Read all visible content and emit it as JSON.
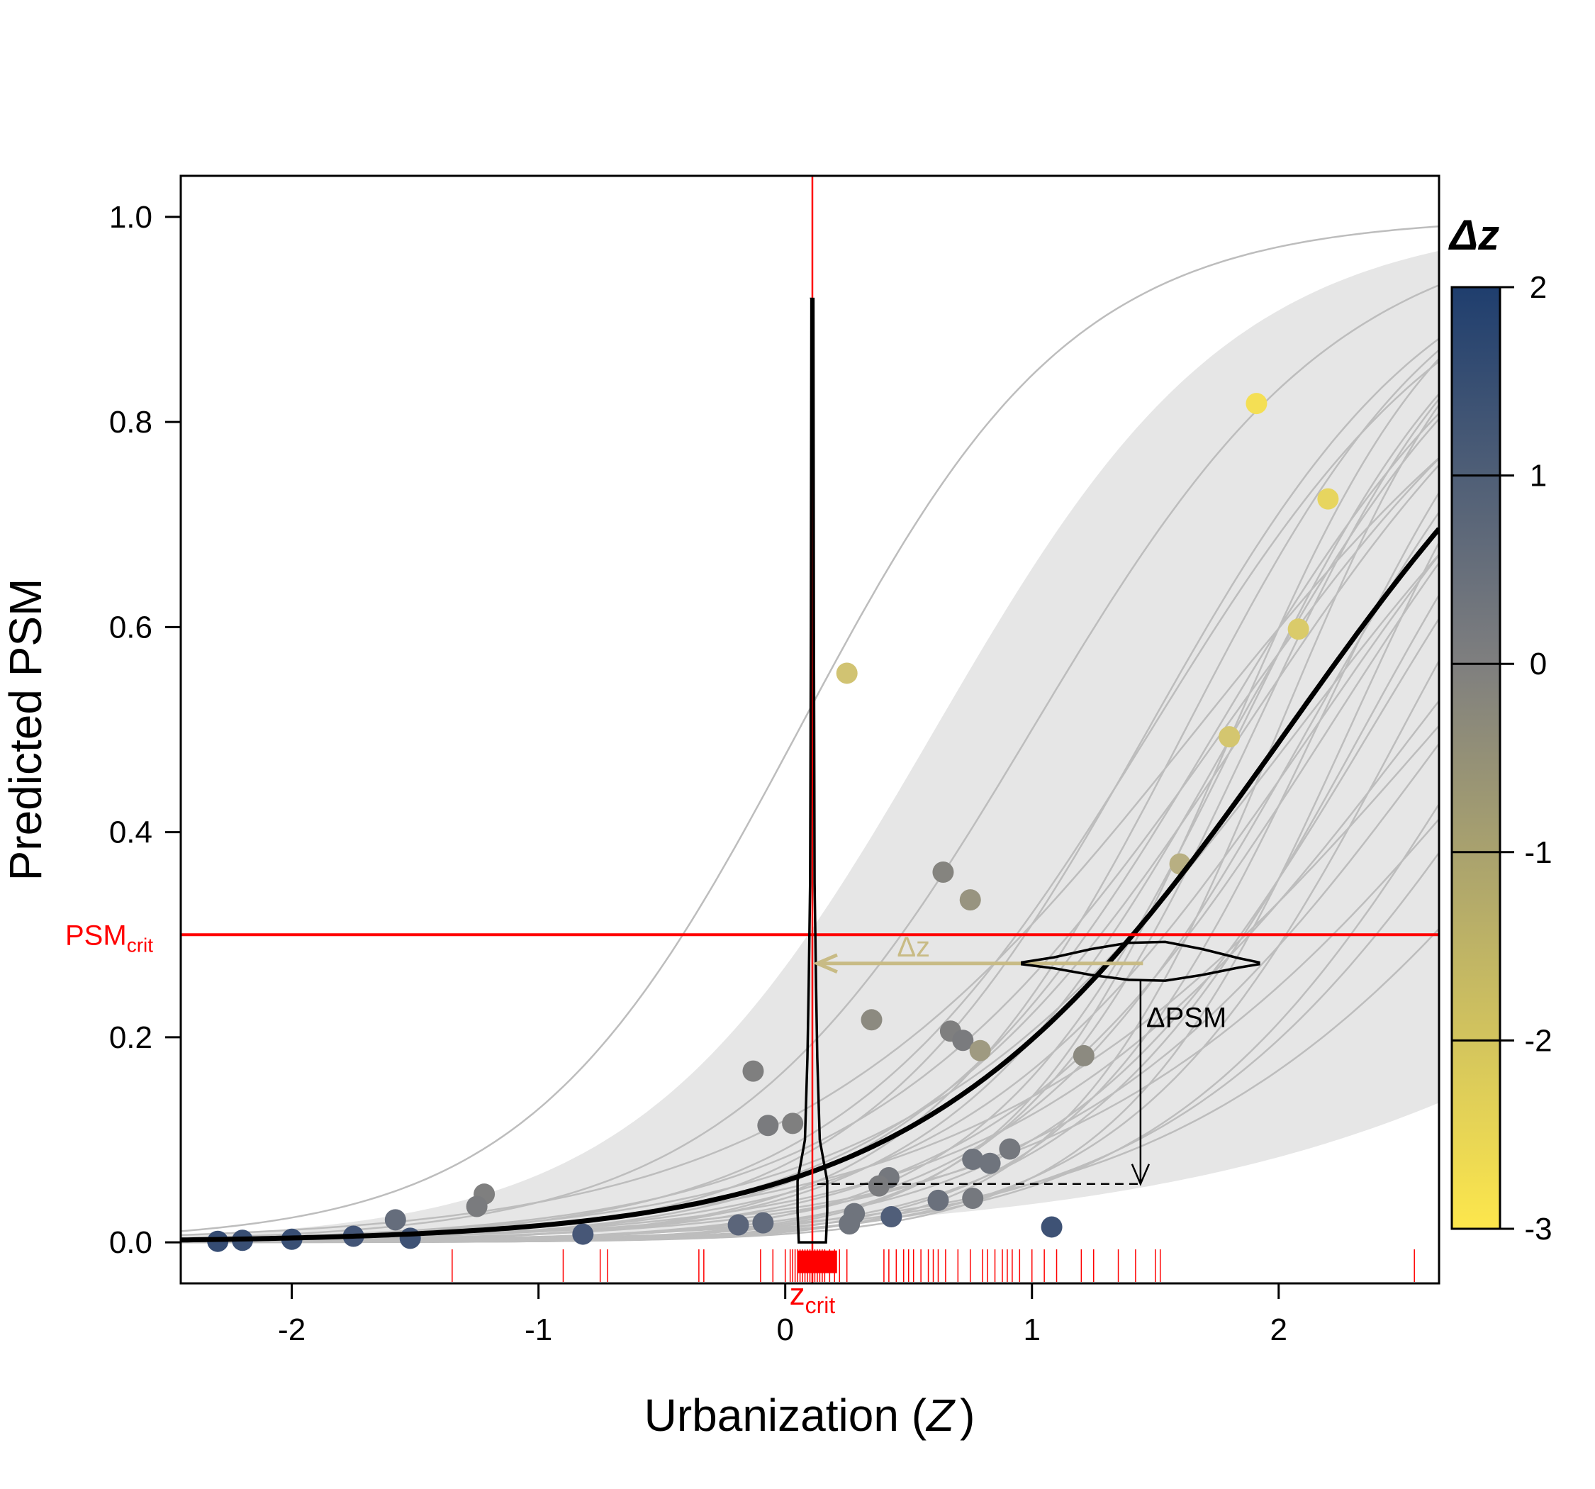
{
  "chart_data": {
    "type": "scatter",
    "xlabel": "Urbanization (",
    "xlabel_var": "Z",
    "xlabel_close": ")",
    "ylabel": "Predicted PSM",
    "xlim": [
      -2.45,
      2.65
    ],
    "ylim": [
      -0.04,
      1.04
    ],
    "x_ticks": [
      -2,
      -1,
      0,
      1,
      2
    ],
    "x_tick_labels": [
      "-2",
      "-1",
      "0",
      "1",
      "2"
    ],
    "y_ticks": [
      0.0,
      0.2,
      0.4,
      0.6,
      0.8,
      1.0
    ],
    "y_tick_labels": [
      "0.0",
      "0.2",
      "0.4",
      "0.6",
      "0.8",
      "1.0"
    ],
    "grid": false,
    "colors": {
      "critical_lines": "#ff0000",
      "mean_curve": "#000000",
      "posterior_curves": "#bdbdbd",
      "credible_band": "#e6e6e6",
      "colorbar_low": "#fde74c",
      "colorbar_mid": "#7f7f7f",
      "colorbar_high": "#1f3e6e"
    },
    "psm_crit": {
      "label": "PSM",
      "sub": "crit",
      "value": 0.3
    },
    "z_crit": {
      "label": "z",
      "sub": "crit",
      "value": 0.11
    },
    "annotations": {
      "delta_z": "Δz",
      "delta_psm": "ΔPSM"
    },
    "colorbar": {
      "title": "Δz",
      "min": -3,
      "max": 2,
      "ticks": [
        2,
        1,
        0,
        -1,
        -2,
        -3
      ],
      "tick_labels": [
        "2",
        "1",
        "0",
        "-1",
        "-2",
        "-3"
      ]
    },
    "mean_curve": {
      "name": "posterior mean",
      "intercept": -2.75,
      "slope": 1.35
    },
    "credible_band": {
      "lower_intercept": -4.1,
      "lower_slope": 0.85,
      "upper_intercept": -1.0,
      "upper_slope": 1.65
    },
    "posterior_curves": [
      {
        "intercept": -0.1,
        "slope": 1.8
      },
      {
        "intercept": -1.6,
        "slope": 1.6
      },
      {
        "intercept": -2.3,
        "slope": 1.55
      },
      {
        "intercept": -3.1,
        "slope": 1.7
      },
      {
        "intercept": -2.0,
        "slope": 1.2
      },
      {
        "intercept": -3.6,
        "slope": 1.95
      },
      {
        "intercept": -4.0,
        "slope": 2.2
      },
      {
        "intercept": -2.6,
        "slope": 1.25
      },
      {
        "intercept": -3.3,
        "slope": 1.5
      },
      {
        "intercept": -2.9,
        "slope": 1.1
      },
      {
        "intercept": -4.3,
        "slope": 2.0
      },
      {
        "intercept": -3.0,
        "slope": 1.85
      },
      {
        "intercept": -3.8,
        "slope": 1.6
      },
      {
        "intercept": -2.4,
        "slope": 1.35
      },
      {
        "intercept": -4.6,
        "slope": 2.3
      },
      {
        "intercept": -3.5,
        "slope": 1.3
      },
      {
        "intercept": -2.8,
        "slope": 1.6
      },
      {
        "intercept": -4.1,
        "slope": 1.75
      },
      {
        "intercept": -3.2,
        "slope": 1.25
      },
      {
        "intercept": -4.4,
        "slope": 1.55
      },
      {
        "intercept": -2.7,
        "slope": 1.45
      },
      {
        "intercept": -3.9,
        "slope": 2.05
      },
      {
        "intercept": -3.4,
        "slope": 1.15
      },
      {
        "intercept": -4.8,
        "slope": 2.1
      },
      {
        "intercept": -4.2,
        "slope": 1.4
      },
      {
        "intercept": -3.0,
        "slope": 1.4
      },
      {
        "intercept": -4.0,
        "slope": 1.2
      },
      {
        "intercept": -3.6,
        "slope": 1.7
      },
      {
        "intercept": -2.5,
        "slope": 1.7
      },
      {
        "intercept": -4.5,
        "slope": 1.8
      }
    ],
    "points": [
      {
        "x": 0.25,
        "y": 0.555,
        "dz": -1.6
      },
      {
        "x": 1.91,
        "y": 0.818,
        "dz": -2.7
      },
      {
        "x": 2.2,
        "y": 0.725,
        "dz": -2.3
      },
      {
        "x": 2.08,
        "y": 0.598,
        "dz": -1.9
      },
      {
        "x": 1.8,
        "y": 0.493,
        "dz": -1.7
      },
      {
        "x": 1.6,
        "y": 0.369,
        "dz": -0.9
      },
      {
        "x": 0.64,
        "y": 0.361,
        "dz": -0.1
      },
      {
        "x": 0.75,
        "y": 0.334,
        "dz": -0.4
      },
      {
        "x": 0.35,
        "y": 0.217,
        "dz": -0.2
      },
      {
        "x": 0.67,
        "y": 0.206,
        "dz": 0.0
      },
      {
        "x": 0.72,
        "y": 0.197,
        "dz": 0.1
      },
      {
        "x": 0.79,
        "y": 0.187,
        "dz": -0.5
      },
      {
        "x": 1.21,
        "y": 0.182,
        "dz": -0.2
      },
      {
        "x": -0.13,
        "y": 0.167,
        "dz": 0.0
      },
      {
        "x": -0.07,
        "y": 0.114,
        "dz": 0.1
      },
      {
        "x": 0.03,
        "y": 0.116,
        "dz": 0.0
      },
      {
        "x": 0.91,
        "y": 0.091,
        "dz": 0.2
      },
      {
        "x": 0.76,
        "y": 0.081,
        "dz": 0.3
      },
      {
        "x": 0.83,
        "y": 0.077,
        "dz": 0.3
      },
      {
        "x": 0.42,
        "y": 0.063,
        "dz": 0.2
      },
      {
        "x": 0.38,
        "y": 0.055,
        "dz": 0.1
      },
      {
        "x": 0.62,
        "y": 0.041,
        "dz": 0.4
      },
      {
        "x": 0.76,
        "y": 0.043,
        "dz": 0.2
      },
      {
        "x": -1.22,
        "y": 0.047,
        "dz": 0.0
      },
      {
        "x": -1.25,
        "y": 0.035,
        "dz": 0.1
      },
      {
        "x": -1.58,
        "y": 0.022,
        "dz": 0.5
      },
      {
        "x": 0.28,
        "y": 0.028,
        "dz": 0.3
      },
      {
        "x": 0.26,
        "y": 0.018,
        "dz": 0.3
      },
      {
        "x": 0.43,
        "y": 0.025,
        "dz": 0.9
      },
      {
        "x": -0.19,
        "y": 0.017,
        "dz": 0.7
      },
      {
        "x": -0.09,
        "y": 0.019,
        "dz": 0.6
      },
      {
        "x": 1.08,
        "y": 0.015,
        "dz": 1.3
      },
      {
        "x": -0.82,
        "y": 0.008,
        "dz": 1.1
      },
      {
        "x": -1.52,
        "y": 0.004,
        "dz": 1.3
      },
      {
        "x": -2.2,
        "y": 0.002,
        "dz": 1.4
      },
      {
        "x": -2.3,
        "y": 0.001,
        "dz": 1.5
      },
      {
        "x": -2.0,
        "y": 0.003,
        "dz": 1.4
      },
      {
        "x": -1.75,
        "y": 0.006,
        "dz": 1.2
      }
    ],
    "zcrit_draws": [
      -1.35,
      -0.9,
      -0.75,
      -0.72,
      -0.35,
      -0.33,
      -0.1,
      -0.05,
      0.0,
      0.02,
      0.03,
      0.04,
      0.05,
      0.06,
      0.07,
      0.08,
      0.09,
      0.1,
      0.11,
      0.12,
      0.13,
      0.14,
      0.15,
      0.16,
      0.18,
      0.2,
      0.22,
      0.25,
      0.4,
      0.42,
      0.45,
      0.48,
      0.5,
      0.52,
      0.55,
      0.58,
      0.6,
      0.62,
      0.65,
      0.7,
      0.75,
      0.8,
      0.82,
      0.85,
      0.88,
      0.9,
      0.92,
      0.95,
      1.0,
      1.05,
      1.1,
      1.2,
      1.25,
      1.35,
      1.42,
      1.5,
      1.52,
      2.55
    ]
  }
}
